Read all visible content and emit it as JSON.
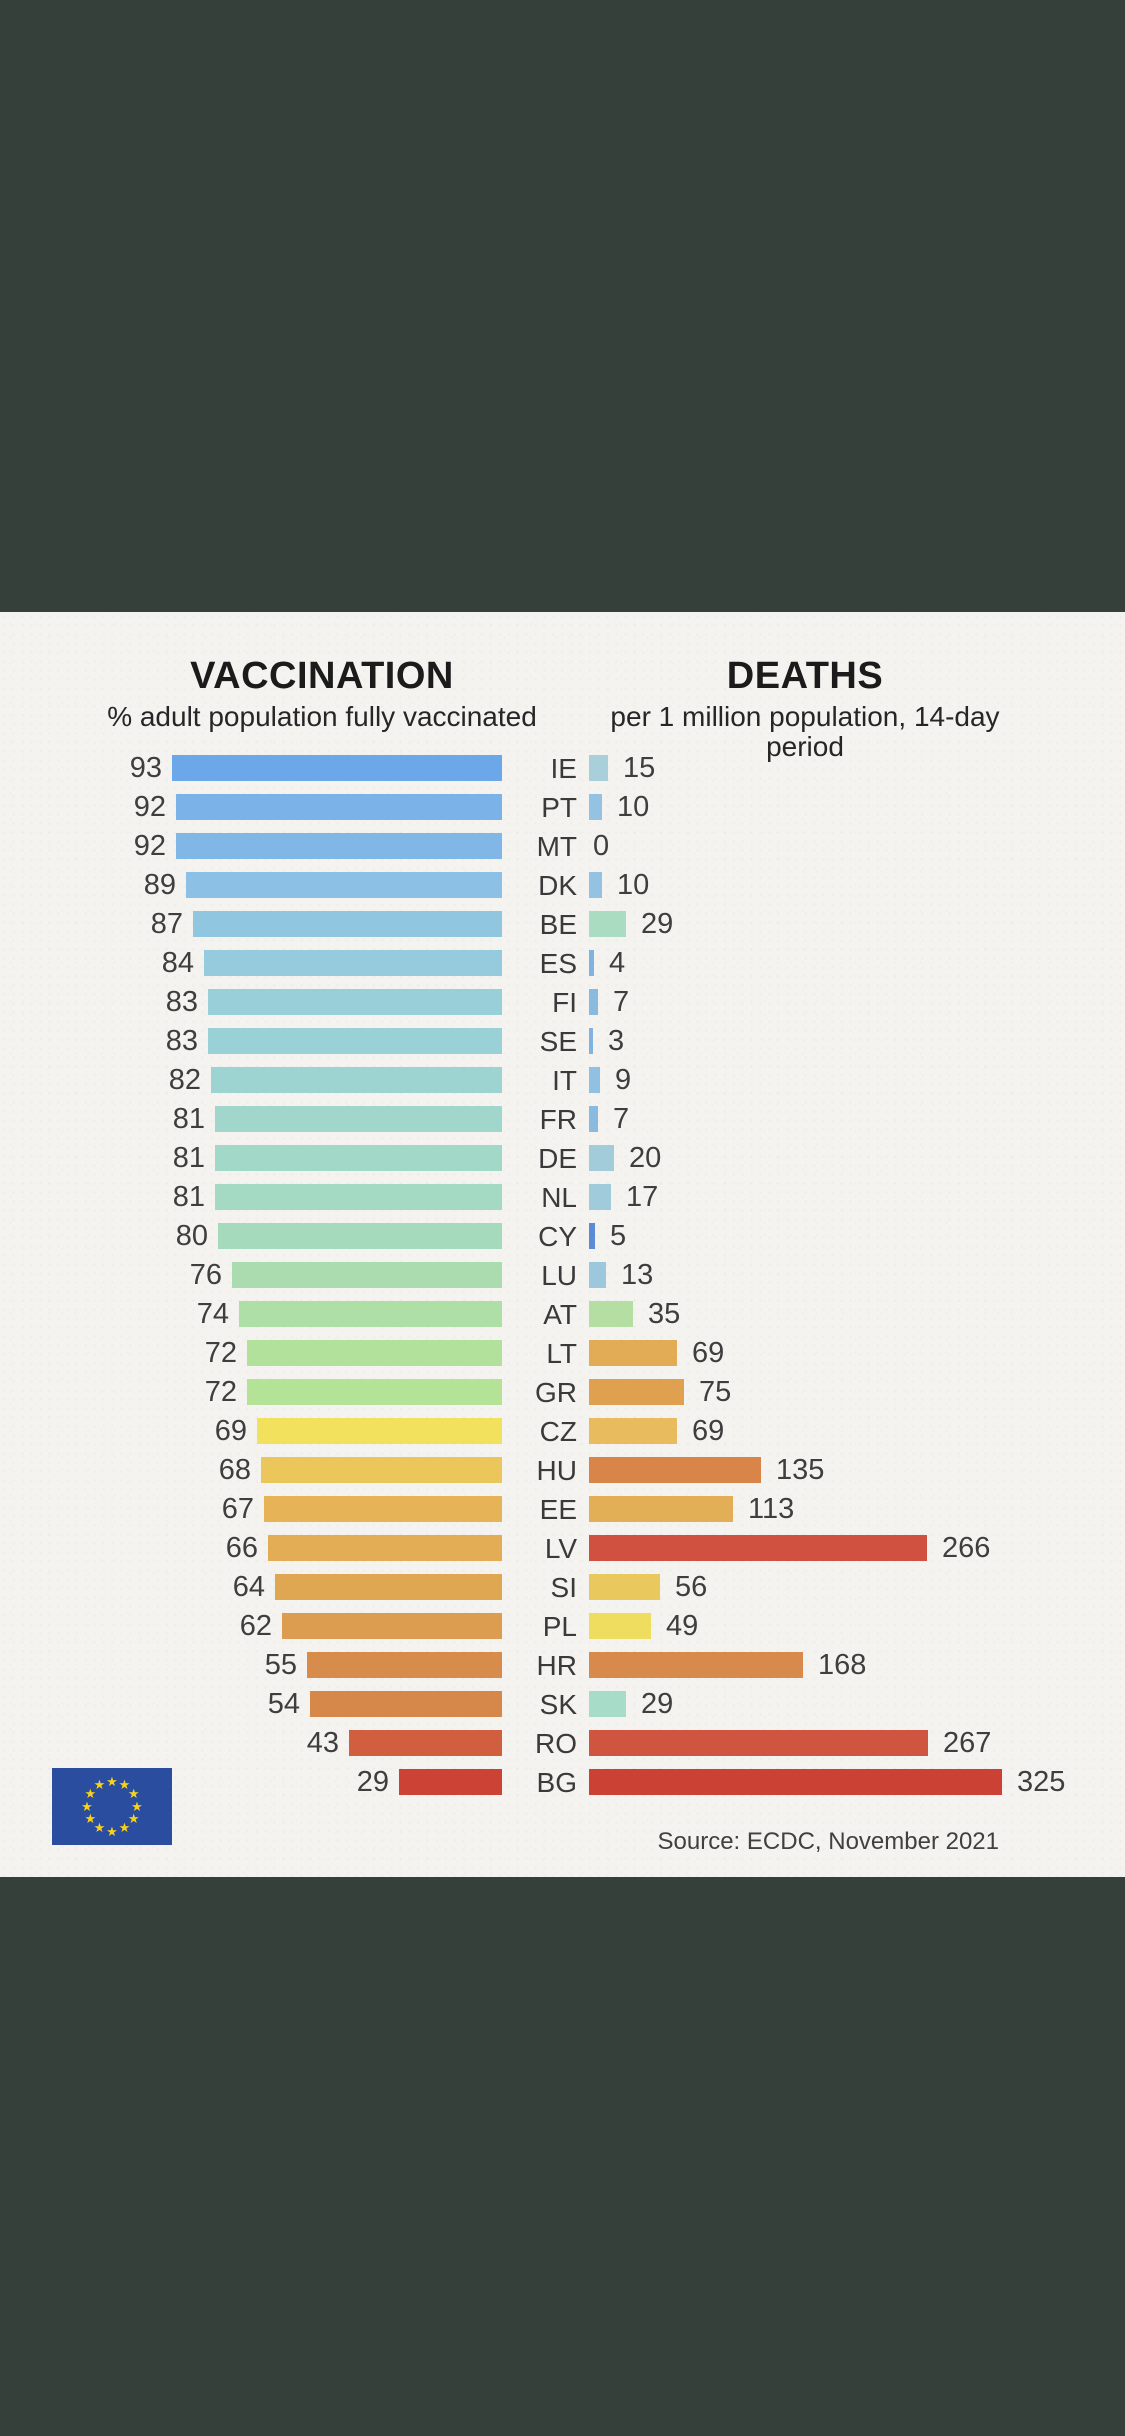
{
  "page": {
    "outer_background": "#36403b",
    "panel_background": "#f4f3f0"
  },
  "header": {
    "left_title": "VACCINATION",
    "left_subtitle": "% adult population fully vaccinated",
    "right_title": "DEATHS",
    "right_subtitle": "per 1 million population, 14-day period"
  },
  "footer": {
    "source": "Source: ECDC, November 2021"
  },
  "flag": {
    "name": "eu-flag",
    "background": "#2a4da0",
    "star_color": "#f8d21a",
    "star_count": 12,
    "star_glyph": "★"
  },
  "chart_data": {
    "type": "bar",
    "orientation": "horizontal-mirrored",
    "title_left": "VACCINATION",
    "xlabel_left": "% adult population fully vaccinated",
    "title_right": "DEATHS",
    "xlabel_right": "per 1 million population, 14-day period",
    "left_axis_range": [
      0,
      93
    ],
    "right_axis_range": [
      0,
      325
    ],
    "grid": false,
    "legend": false,
    "rows": [
      {
        "code": "IE",
        "vaccination": 93,
        "deaths": 15,
        "vaccination_color": "#6ca7e9",
        "deaths_color": "#a9cfdb"
      },
      {
        "code": "PT",
        "vaccination": 92,
        "deaths": 10,
        "vaccination_color": "#7bb3e8",
        "deaths_color": "#93c2e2"
      },
      {
        "code": "MT",
        "vaccination": 92,
        "deaths": 0,
        "vaccination_color": "#80b7e6",
        "deaths_color": null
      },
      {
        "code": "DK",
        "vaccination": 89,
        "deaths": 10,
        "vaccination_color": "#8cc0e4",
        "deaths_color": "#93c2e2"
      },
      {
        "code": "BE",
        "vaccination": 87,
        "deaths": 29,
        "vaccination_color": "#91c6e1",
        "deaths_color": "#a9dcc1"
      },
      {
        "code": "ES",
        "vaccination": 84,
        "deaths": 4,
        "vaccination_color": "#95cbdd",
        "deaths_color": "#82b2e0"
      },
      {
        "code": "FI",
        "vaccination": 83,
        "deaths": 7,
        "vaccination_color": "#98cfd9",
        "deaths_color": "#8abade"
      },
      {
        "code": "SE",
        "vaccination": 83,
        "deaths": 3,
        "vaccination_color": "#9ad1d6",
        "deaths_color": "#82b2e0"
      },
      {
        "code": "IT",
        "vaccination": 82,
        "deaths": 9,
        "vaccination_color": "#9dd4d1",
        "deaths_color": "#90c0e2"
      },
      {
        "code": "FR",
        "vaccination": 81,
        "deaths": 7,
        "vaccination_color": "#a0d6cb",
        "deaths_color": "#8abade"
      },
      {
        "code": "DE",
        "vaccination": 81,
        "deaths": 20,
        "vaccination_color": "#a2d8c7",
        "deaths_color": "#a2ccd9"
      },
      {
        "code": "NL",
        "vaccination": 81,
        "deaths": 17,
        "vaccination_color": "#a4d9c4",
        "deaths_color": "#a0cbda"
      },
      {
        "code": "CY",
        "vaccination": 80,
        "deaths": 5,
        "vaccination_color": "#a6dabd",
        "deaths_color": "#5c8bd5"
      },
      {
        "code": "LU",
        "vaccination": 76,
        "deaths": 13,
        "vaccination_color": "#aadcb0",
        "deaths_color": "#9cc7dc"
      },
      {
        "code": "AT",
        "vaccination": 74,
        "deaths": 35,
        "vaccination_color": "#aedfa6",
        "deaths_color": "#b5dfa2"
      },
      {
        "code": "LT",
        "vaccination": 72,
        "deaths": 69,
        "vaccination_color": "#b2e19c",
        "deaths_color": "#e2ab55"
      },
      {
        "code": "GR",
        "vaccination": 72,
        "deaths": 75,
        "vaccination_color": "#b4e297",
        "deaths_color": "#dfa050"
      },
      {
        "code": "CZ",
        "vaccination": 69,
        "deaths": 69,
        "vaccination_color": "#f1e15c",
        "deaths_color": "#e8bc5e"
      },
      {
        "code": "HU",
        "vaccination": 68,
        "deaths": 135,
        "vaccination_color": "#ebc65a",
        "deaths_color": "#d9854a"
      },
      {
        "code": "EE",
        "vaccination": 67,
        "deaths": 113,
        "vaccination_color": "#e6b457",
        "deaths_color": "#e2ae56"
      },
      {
        "code": "LV",
        "vaccination": 66,
        "deaths": 266,
        "vaccination_color": "#e3ad55",
        "deaths_color": "#d05140"
      },
      {
        "code": "SI",
        "vaccination": 64,
        "deaths": 56,
        "vaccination_color": "#e0a753",
        "deaths_color": "#e9c95e"
      },
      {
        "code": "PL",
        "vaccination": 62,
        "deaths": 49,
        "vaccination_color": "#dd9d50",
        "deaths_color": "#eedd5f"
      },
      {
        "code": "HR",
        "vaccination": 55,
        "deaths": 168,
        "vaccination_color": "#d88c4c",
        "deaths_color": "#d8894c"
      },
      {
        "code": "SK",
        "vaccination": 54,
        "deaths": 29,
        "vaccination_color": "#d6884a",
        "deaths_color": "#a6dcc8"
      },
      {
        "code": "RO",
        "vaccination": 43,
        "deaths": 267,
        "vaccination_color": "#d15f3f",
        "deaths_color": "#d05540"
      },
      {
        "code": "BG",
        "vaccination": 29,
        "deaths": 325,
        "vaccination_color": "#cc4234",
        "deaths_color": "#cb4134"
      }
    ]
  }
}
